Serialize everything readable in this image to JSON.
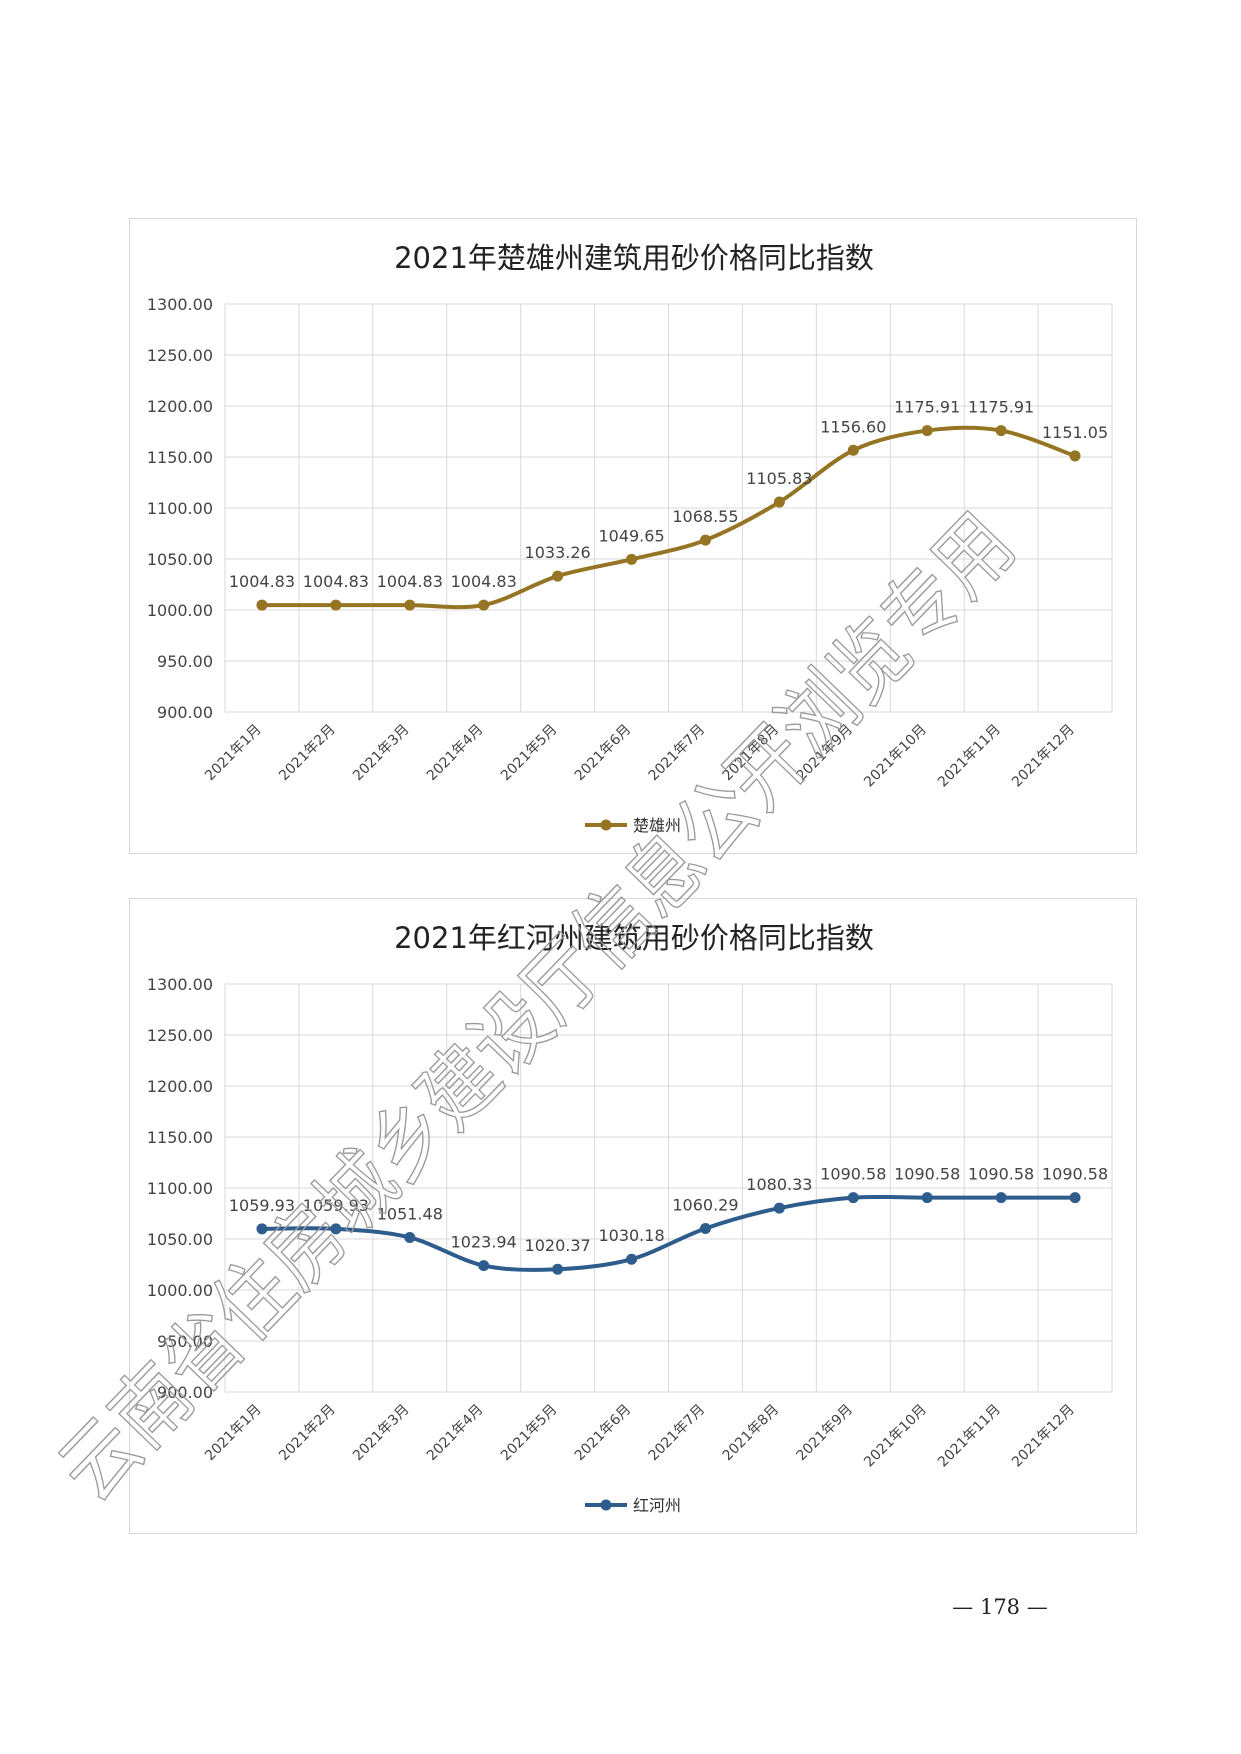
{
  "charts": [
    {
      "type": "line",
      "title": "2021年楚雄州建筑用砂价格同比指数",
      "categories": [
        "2021年1月",
        "2021年2月",
        "2021年3月",
        "2021年4月",
        "2021年5月",
        "2021年6月",
        "2021年7月",
        "2021年8月",
        "2021年9月",
        "2021年10月",
        "2021年11月",
        "2021年12月"
      ],
      "y_ticks": [
        "900.00",
        "950.00",
        "1000.00",
        "1050.00",
        "1100.00",
        "1150.00",
        "1200.00",
        "1250.00",
        "1300.00"
      ],
      "ylim": [
        900,
        1300
      ],
      "series": [
        {
          "name": "楚雄州",
          "color": "#957524",
          "values": [
            1004.83,
            1004.83,
            1004.83,
            1004.83,
            1033.26,
            1049.65,
            1068.55,
            1105.83,
            1156.6,
            1175.91,
            1175.91,
            1151.05
          ],
          "labels": [
            "1004.83",
            "1004.83",
            "1004.83",
            "1004.83",
            "1033.26",
            "1049.65",
            "1068.55",
            "1105.83",
            "1156.60",
            "1175.91",
            "1175.91",
            "1151.05"
          ]
        }
      ],
      "grid": true,
      "legend_position": "bottom"
    },
    {
      "type": "line",
      "title": "2021年红河州建筑用砂价格同比指数",
      "categories": [
        "2021年1月",
        "2021年2月",
        "2021年3月",
        "2021年4月",
        "2021年5月",
        "2021年6月",
        "2021年7月",
        "2021年8月",
        "2021年9月",
        "2021年10月",
        "2021年11月",
        "2021年12月"
      ],
      "y_ticks": [
        "900.00",
        "950.00",
        "1000.00",
        "1050.00",
        "1100.00",
        "1150.00",
        "1200.00",
        "1250.00",
        "1300.00"
      ],
      "ylim": [
        900,
        1300
      ],
      "series": [
        {
          "name": "红河州",
          "color": "#2e5c8c",
          "values": [
            1059.93,
            1059.93,
            1051.48,
            1023.94,
            1020.37,
            1030.18,
            1060.29,
            1080.33,
            1090.58,
            1090.58,
            1090.58,
            1090.58
          ],
          "labels": [
            "1059.93",
            "1059.93",
            "1051.48",
            "1023.94",
            "1020.37",
            "1030.18",
            "1060.29",
            "1080.33",
            "1090.58",
            "1090.58",
            "1090.58",
            "1090.58"
          ]
        }
      ],
      "grid": true,
      "legend_position": "bottom"
    }
  ],
  "page": {
    "number": "— 178 —"
  },
  "watermark": {
    "text": "云南省住房城乡建设厅信息公开浏览专用"
  }
}
